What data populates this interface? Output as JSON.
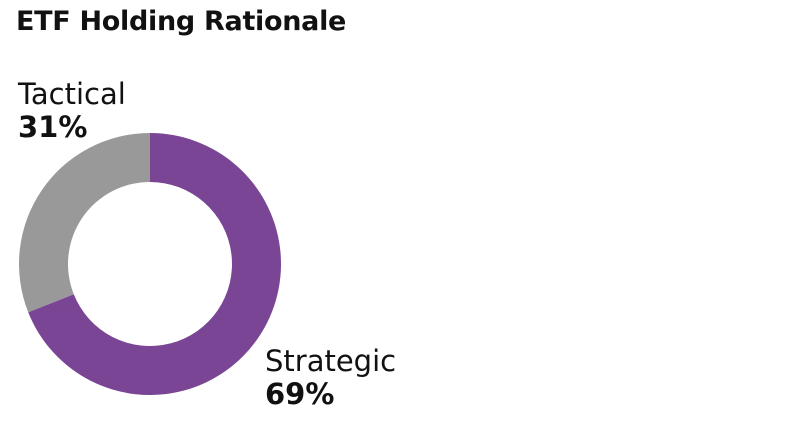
{
  "chart_data": {
    "type": "pie",
    "title": "ETF Holding Rationale",
    "donut": true,
    "start_angle_deg": 0,
    "direction": "clockwise",
    "categories": [
      "Strategic",
      "Tactical"
    ],
    "values": [
      69,
      31
    ],
    "value_labels": [
      "69%",
      "31%"
    ],
    "colors": [
      "#7b4596",
      "#999999"
    ],
    "legend": "none"
  }
}
